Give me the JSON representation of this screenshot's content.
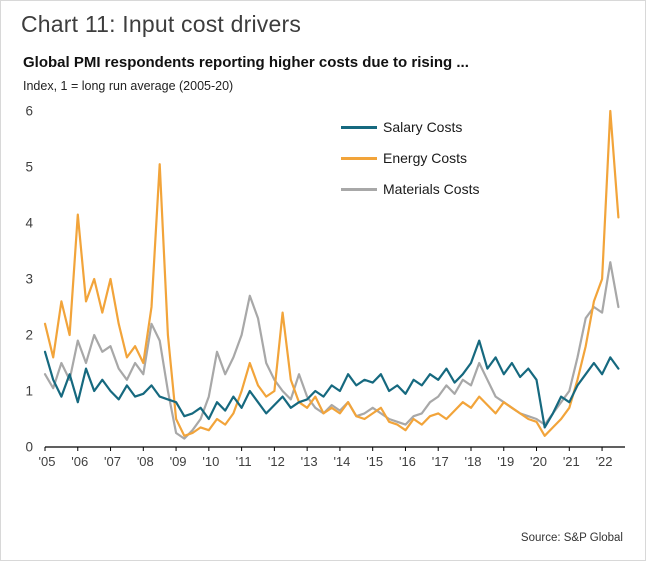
{
  "header": {
    "title": "Chart 11: Input cost drivers",
    "subtitle": "Global PMI respondents reporting higher costs due to rising ...",
    "axis_note": "Index, 1 = long run average (2005-20)"
  },
  "footer": {
    "source": "Source: S&P Global"
  },
  "chart_data": {
    "type": "line",
    "title": "Global PMI respondents reporting higher costs due to rising ...",
    "ylabel": "Index, 1 = long run average (2005-20)",
    "ylim": [
      0,
      6
    ],
    "y_ticks": [
      0,
      1,
      2,
      3,
      4,
      5,
      6
    ],
    "x_start": 2005.0,
    "x_step": 0.25,
    "x_tick_years": [
      2005,
      2006,
      2007,
      2008,
      2009,
      2010,
      2011,
      2012,
      2013,
      2014,
      2015,
      2016,
      2017,
      2018,
      2019,
      2020,
      2021,
      2022
    ],
    "x_tick_labels": [
      "'05",
      "'06",
      "'07",
      "'08",
      "'09",
      "'10",
      "'11",
      "'12",
      "'13",
      "'14",
      "'15",
      "'16",
      "'17",
      "'18",
      "'19",
      "'20",
      "'21",
      "'22"
    ],
    "grid": false,
    "legend_position": "upper middle",
    "series": [
      {
        "name": "Salary Costs",
        "color": "#16697f",
        "values": [
          1.7,
          1.2,
          0.9,
          1.3,
          0.8,
          1.4,
          1.0,
          1.2,
          1.0,
          0.85,
          1.1,
          0.9,
          0.95,
          1.1,
          0.9,
          0.85,
          0.8,
          0.55,
          0.6,
          0.7,
          0.5,
          0.8,
          0.65,
          0.9,
          0.7,
          1.0,
          0.8,
          0.6,
          0.75,
          0.9,
          0.7,
          0.8,
          0.85,
          1.0,
          0.9,
          1.1,
          1.0,
          1.3,
          1.1,
          1.2,
          1.15,
          1.3,
          1.0,
          1.1,
          0.95,
          1.2,
          1.1,
          1.3,
          1.2,
          1.4,
          1.15,
          1.3,
          1.5,
          1.9,
          1.4,
          1.6,
          1.3,
          1.5,
          1.25,
          1.4,
          1.2,
          0.35,
          0.6,
          0.9,
          0.8,
          1.1,
          1.3,
          1.5,
          1.3,
          1.6,
          1.4
        ]
      },
      {
        "name": "Energy Costs",
        "color": "#f2a43a",
        "values": [
          2.2,
          1.6,
          2.6,
          2.0,
          4.15,
          2.6,
          3.0,
          2.4,
          3.0,
          2.2,
          1.6,
          1.8,
          1.5,
          2.5,
          5.05,
          2.0,
          0.5,
          0.2,
          0.25,
          0.35,
          0.3,
          0.5,
          0.4,
          0.6,
          1.0,
          1.5,
          1.1,
          0.9,
          1.0,
          2.4,
          1.2,
          0.8,
          0.7,
          0.9,
          0.6,
          0.7,
          0.6,
          0.8,
          0.55,
          0.5,
          0.6,
          0.7,
          0.45,
          0.4,
          0.3,
          0.5,
          0.4,
          0.55,
          0.6,
          0.5,
          0.65,
          0.8,
          0.7,
          0.9,
          0.75,
          0.6,
          0.8,
          0.7,
          0.6,
          0.5,
          0.45,
          0.2,
          0.35,
          0.5,
          0.7,
          1.2,
          1.8,
          2.6,
          3.0,
          6.0,
          4.1
        ]
      },
      {
        "name": "Materials Costs",
        "color": "#a8a8a8",
        "values": [
          1.3,
          1.05,
          1.5,
          1.2,
          1.9,
          1.5,
          2.0,
          1.7,
          1.8,
          1.4,
          1.2,
          1.5,
          1.3,
          2.2,
          1.9,
          1.0,
          0.25,
          0.15,
          0.3,
          0.5,
          0.9,
          1.7,
          1.3,
          1.6,
          2.0,
          2.7,
          2.3,
          1.5,
          1.2,
          1.0,
          0.85,
          1.3,
          0.9,
          0.7,
          0.6,
          0.75,
          0.65,
          0.8,
          0.55,
          0.6,
          0.7,
          0.6,
          0.5,
          0.45,
          0.4,
          0.55,
          0.6,
          0.8,
          0.9,
          1.1,
          0.95,
          1.2,
          1.1,
          1.5,
          1.2,
          0.9,
          0.8,
          0.7,
          0.6,
          0.55,
          0.5,
          0.4,
          0.6,
          0.8,
          1.0,
          1.6,
          2.3,
          2.5,
          2.4,
          3.3,
          2.5
        ]
      }
    ]
  }
}
